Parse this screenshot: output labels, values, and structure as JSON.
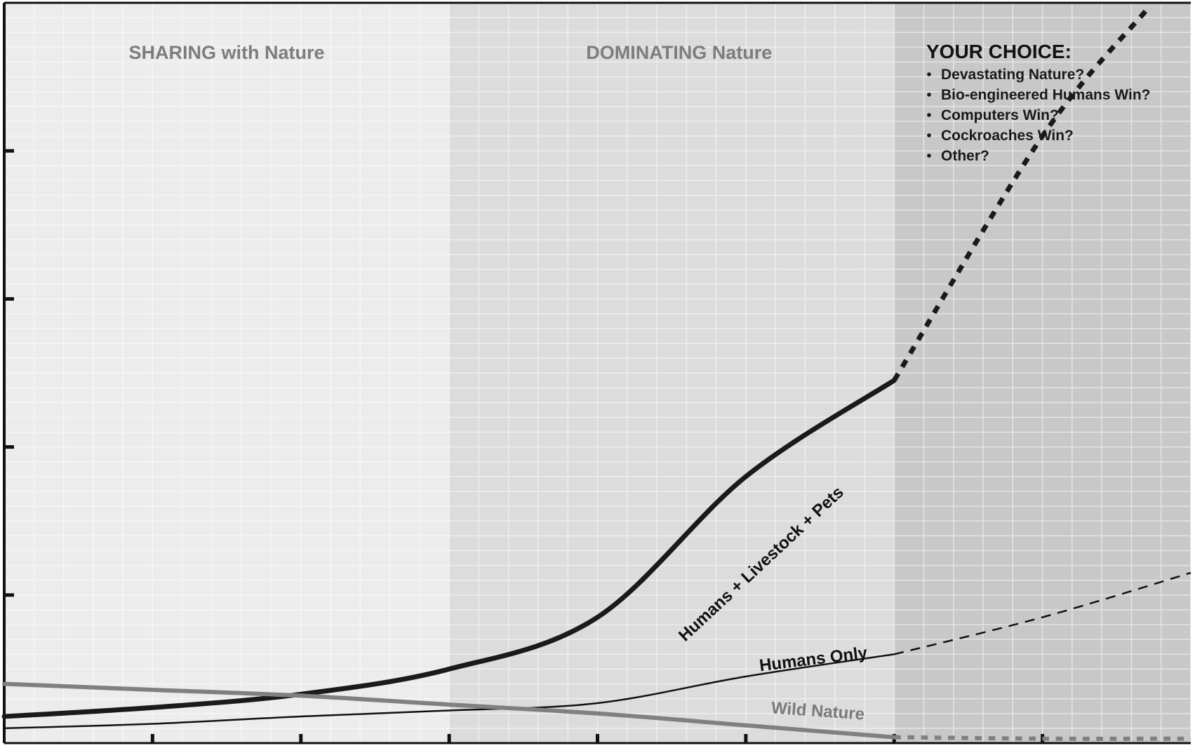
{
  "chart_data": {
    "type": "line",
    "title": "",
    "xlabel": "",
    "ylabel": "",
    "x_ticks": 8,
    "y_ticks": 5,
    "xlim": [
      0,
      8
    ],
    "ylim": [
      0,
      5
    ],
    "grid": true,
    "regions": [
      {
        "label": "SHARING with Nature",
        "x_range": [
          0,
          3
        ],
        "shade": "#ececec"
      },
      {
        "label": "DOMINATING Nature",
        "x_range": [
          3,
          6
        ],
        "shade": "#dcdcdc"
      },
      {
        "label": "",
        "x_range": [
          6,
          8
        ],
        "shade": "#c8c8c8"
      }
    ],
    "choice_box": {
      "title": "YOUR CHOICE:",
      "items": [
        "Devastating Nature?",
        "Bio-engineered Humans Win?",
        "Computers Win?",
        "Cockroaches Win?",
        "Other?"
      ]
    },
    "series": [
      {
        "name": "Humans + Livestock + Pets",
        "color": "#1a1a1a",
        "width": 7,
        "solid": [
          [
            0,
            0.18
          ],
          [
            1,
            0.24
          ],
          [
            2,
            0.33
          ],
          [
            3,
            0.5
          ],
          [
            4,
            0.85
          ],
          [
            5,
            1.8
          ],
          [
            6,
            2.45
          ]
        ],
        "projected": [
          [
            6,
            2.45
          ],
          [
            7,
            4.1
          ],
          [
            7.7,
            4.95
          ]
        ]
      },
      {
        "name": "Humans Only",
        "color": "#111111",
        "width": 2.5,
        "solid": [
          [
            0,
            0.1
          ],
          [
            1,
            0.13
          ],
          [
            2,
            0.18
          ],
          [
            3,
            0.22
          ],
          [
            4,
            0.27
          ],
          [
            5,
            0.45
          ],
          [
            6,
            0.6
          ]
        ],
        "projected": [
          [
            6,
            0.6
          ],
          [
            7,
            0.85
          ],
          [
            8,
            1.15
          ]
        ]
      },
      {
        "name": "Wild Nature",
        "color": "#808080",
        "width": 6,
        "solid": [
          [
            0,
            0.4
          ],
          [
            1,
            0.36
          ],
          [
            2,
            0.32
          ],
          [
            3,
            0.26
          ],
          [
            4,
            0.2
          ],
          [
            5,
            0.12
          ],
          [
            6,
            0.04
          ]
        ],
        "projected": [
          [
            6,
            0.04
          ],
          [
            7,
            0.03
          ],
          [
            8,
            0.03
          ]
        ]
      }
    ]
  }
}
